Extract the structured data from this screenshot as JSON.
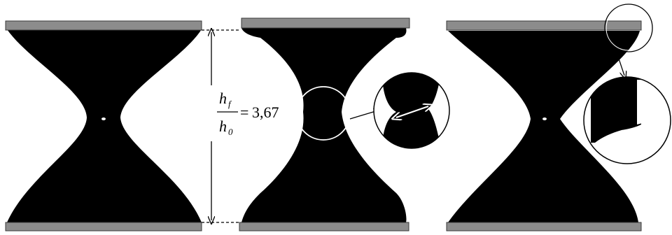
{
  "formula": {
    "numerator": "h",
    "numerator_sub": "f",
    "denominator": "h",
    "denominator_sub": "0",
    "equals": "=",
    "value": "3,67"
  },
  "colors": {
    "plate": "#8c8c8c",
    "solid": "#000000",
    "annotation": "#ffffff"
  }
}
